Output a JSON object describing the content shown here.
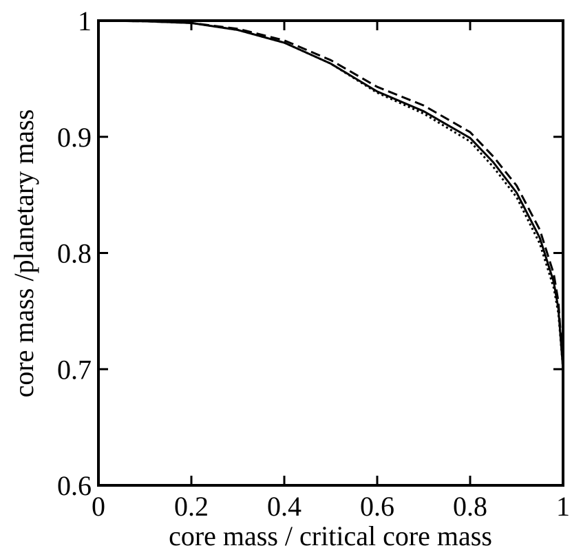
{
  "chart_data": {
    "type": "line",
    "xlabel": "core mass / critical core mass",
    "ylabel": "core mass /planetary mass",
    "x": [
      0,
      0.1,
      0.2,
      0.3,
      0.4,
      0.5,
      0.6,
      0.7,
      0.8,
      0.85,
      0.9,
      0.95,
      0.98,
      0.99,
      1
    ],
    "series": [
      {
        "color": "#000000",
        "dash": "solid",
        "values": [
          1,
          0.9995,
          0.998,
          0.992,
          0.981,
          0.963,
          0.939,
          0.922,
          0.899,
          0.878,
          0.852,
          0.813,
          0.775,
          0.752,
          0.7
        ]
      },
      {
        "color": "#000000",
        "dash": "dashed",
        "values": [
          1,
          0.9995,
          0.998,
          0.993,
          0.983,
          0.966,
          0.943,
          0.927,
          0.904,
          0.883,
          0.858,
          0.82,
          0.782,
          0.758,
          0.7
        ]
      },
      {
        "color": "#000000",
        "dash": "dotted",
        "values": [
          1,
          0.9995,
          0.998,
          0.992,
          0.981,
          0.963,
          0.938,
          0.92,
          0.896,
          0.874,
          0.848,
          0.808,
          0.77,
          0.748,
          0.7
        ]
      }
    ],
    "xlim": [
      0,
      1
    ],
    "xticks": [
      0,
      0.2,
      0.4,
      0.6,
      0.8,
      1
    ],
    "ylim": [
      0.6,
      1
    ],
    "yticks": [
      0.6,
      0.7,
      0.8,
      0.9,
      1
    ]
  }
}
